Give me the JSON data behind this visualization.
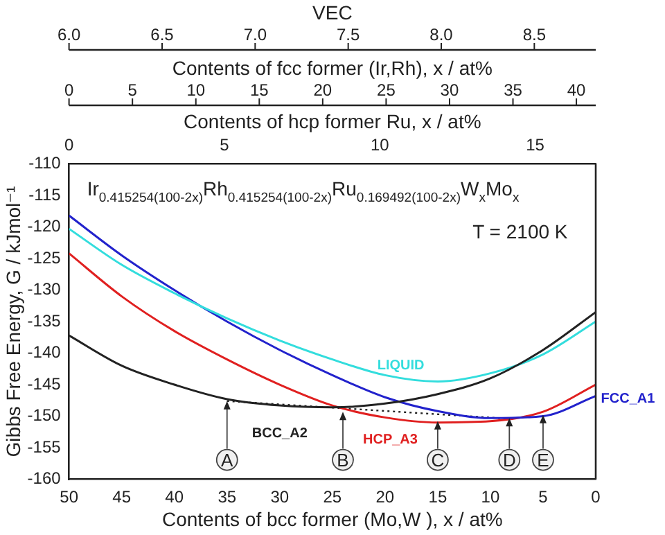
{
  "chart_data": {
    "type": "line",
    "xlabel": "Contents of bcc former (Mo,W ), x / at%",
    "ylabel": "Gibbs Free Energy, G / kJmol⁻¹",
    "x2label": "Contents of hcp former Ru, x / at%",
    "xlim": [
      50,
      0
    ],
    "xticks": [
      50,
      45,
      40,
      35,
      30,
      25,
      20,
      15,
      10,
      5,
      0
    ],
    "x2lim": [
      0,
      16.9492
    ],
    "x2ticks": [
      0,
      5,
      10,
      15
    ],
    "ylim": [
      -160,
      -110
    ],
    "yticks": [
      -110,
      -115,
      -120,
      -125,
      -130,
      -135,
      -140,
      -145,
      -150,
      -155,
      -160
    ],
    "grid": false,
    "legend": false,
    "marker": "none",
    "x": [
      50,
      45,
      40,
      35,
      30,
      25,
      20,
      15,
      10,
      5,
      0
    ],
    "series": [
      {
        "name": "BCC_A2",
        "color": "#222222",
        "values": [
          -137.2,
          -142.0,
          -145.0,
          -147.3,
          -148.3,
          -148.6,
          -148.0,
          -146.5,
          -144.0,
          -139.5,
          -133.5
        ]
      },
      {
        "name": "LIQUID",
        "color": "#33dddd",
        "values": [
          -120.3,
          -126.0,
          -130.5,
          -134.5,
          -138.0,
          -141.0,
          -143.5,
          -144.5,
          -143.2,
          -140.2,
          -135.0
        ]
      },
      {
        "name": "FCC_A1",
        "color": "#2222cc",
        "values": [
          -118.2,
          -124.5,
          -130.0,
          -135.0,
          -139.5,
          -143.5,
          -147.0,
          -149.2,
          -150.3,
          -150.0,
          -146.8
        ]
      },
      {
        "name": "HCP_A3",
        "color": "#e02020",
        "values": [
          -124.2,
          -131.0,
          -136.5,
          -141.0,
          -145.0,
          -148.3,
          -150.2,
          -151.0,
          -150.8,
          -149.3,
          -145.0
        ]
      },
      {
        "color": "#222222",
        "line_style": "dotted",
        "x": [
          35,
          8.2
        ],
        "values": [
          -147.6,
          -150.4
        ]
      }
    ],
    "annotations": [
      "Ir$_{0.415254(100-2x)}$Rh$_{0.415254(100-2x)}$Ru$_{0.169492(100-2x)}$W$_{x}$Mo$_{x}$",
      "T = 2100 K",
      "Contents of fcc former (Ir,Rh), x / at%",
      "0",
      "5",
      "10",
      "15",
      "20",
      "25",
      "30",
      "35",
      "40",
      "VEC",
      "6.0",
      "6.5",
      "7.0",
      "7.5",
      "8.0",
      "8.5",
      {
        "text": "A",
        "x": 35,
        "y": -147.6
      },
      {
        "text": "B",
        "x": 24,
        "y": -149.3
      },
      {
        "text": "C",
        "x": 15,
        "y": -150.8
      },
      {
        "text": "D",
        "x": 8.2,
        "y": -150.3
      },
      {
        "text": "E",
        "x": 5,
        "y": -149.8
      }
    ]
  }
}
